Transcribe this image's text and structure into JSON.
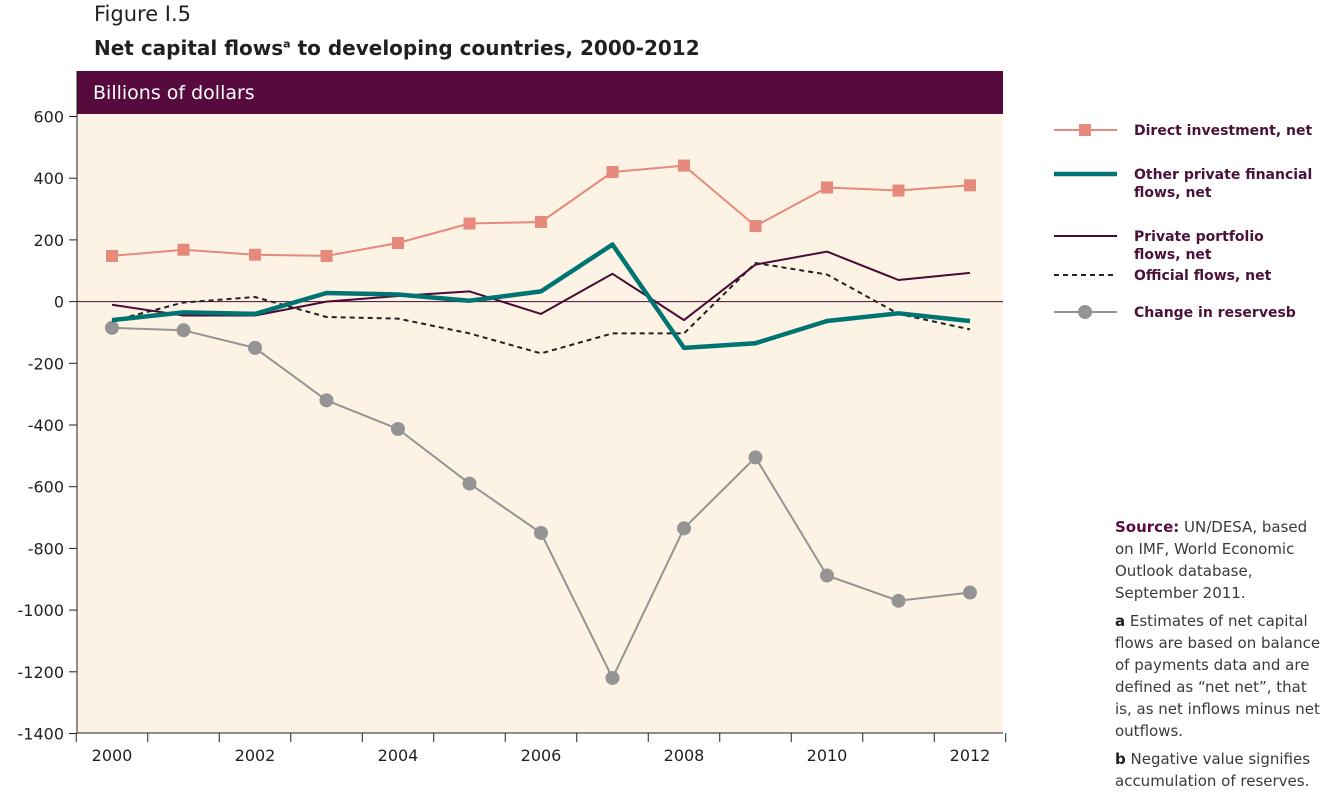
{
  "figure": {
    "label": "Figure I.5",
    "title_main": "Net capital flows",
    "title_sup": "a",
    "title_rest": " to developing countries, 2000-2012"
  },
  "notes": {
    "source_label": "Source:",
    "source_text": " UN/DESA, based on IMF, World Economic Outlook database, September 2011.",
    "footnote_a_mark": "a",
    "footnote_a_text": " Estimates of net capital flows are based on balance of payments data and are defined as “net net”, that is, as net inflows minus net outflows.",
    "footnote_b_mark": "b",
    "footnote_b_text": " Negative value signifies accumulation of reserves."
  },
  "chart_data": {
    "type": "line",
    "unit_banner": "Billions of dollars",
    "x": [
      2000,
      2001,
      2002,
      2003,
      2004,
      2005,
      2006,
      2007,
      2008,
      2009,
      2010,
      2011,
      2012
    ],
    "x_tick_labels": [
      "2000",
      "2002",
      "2004",
      "2006",
      "2008",
      "2010",
      "2012"
    ],
    "y_ticks": [
      600,
      400,
      200,
      0,
      -200,
      -400,
      -600,
      -800,
      -1000,
      -1200,
      -1400
    ],
    "ylim": [
      -1400,
      600
    ],
    "grid": false,
    "legend_position": "right",
    "colors": {
      "plot_bg": "#fcf3e4",
      "banner_bg": "#560a3e",
      "direct": "#e58a7c",
      "other_private": "#007373",
      "portfolio": "#4a0a36",
      "official": "#222222",
      "reserves": "#949494"
    },
    "series": [
      {
        "name": "Direct investment, net",
        "legend": [
          "Direct investment, net"
        ],
        "style": "direct",
        "values": [
          148,
          168,
          152,
          148,
          190,
          253,
          258,
          420,
          441,
          245,
          370,
          360,
          377
        ]
      },
      {
        "name": "Other private financial flows, net",
        "legend": [
          "Other private financial",
          "flows, net"
        ],
        "style": "other_private",
        "values": [
          -60,
          -35,
          -40,
          28,
          23,
          3,
          33,
          185,
          -150,
          -135,
          -63,
          -38,
          -63
        ]
      },
      {
        "name": "Private portfolio flows, net",
        "legend": [
          "Private portfolio",
          "flows, net"
        ],
        "style": "portfolio",
        "values": [
          -10,
          -45,
          -45,
          0,
          18,
          33,
          -40,
          90,
          -60,
          120,
          162,
          70,
          93
        ]
      },
      {
        "name": "Official flows, net",
        "legend": [
          "Official flows, net"
        ],
        "style": "official",
        "values": [
          -63,
          -3,
          15,
          -50,
          -55,
          -103,
          -168,
          -103,
          -103,
          125,
          88,
          -40,
          -90
        ]
      },
      {
        "name": "Change in reservesb",
        "legend": [
          "Change in reservesb"
        ],
        "style": "reserves",
        "values": [
          -85,
          -93,
          -150,
          -320,
          -413,
          -590,
          -750,
          -1220,
          -735,
          -505,
          -888,
          -970,
          -943
        ]
      }
    ]
  }
}
